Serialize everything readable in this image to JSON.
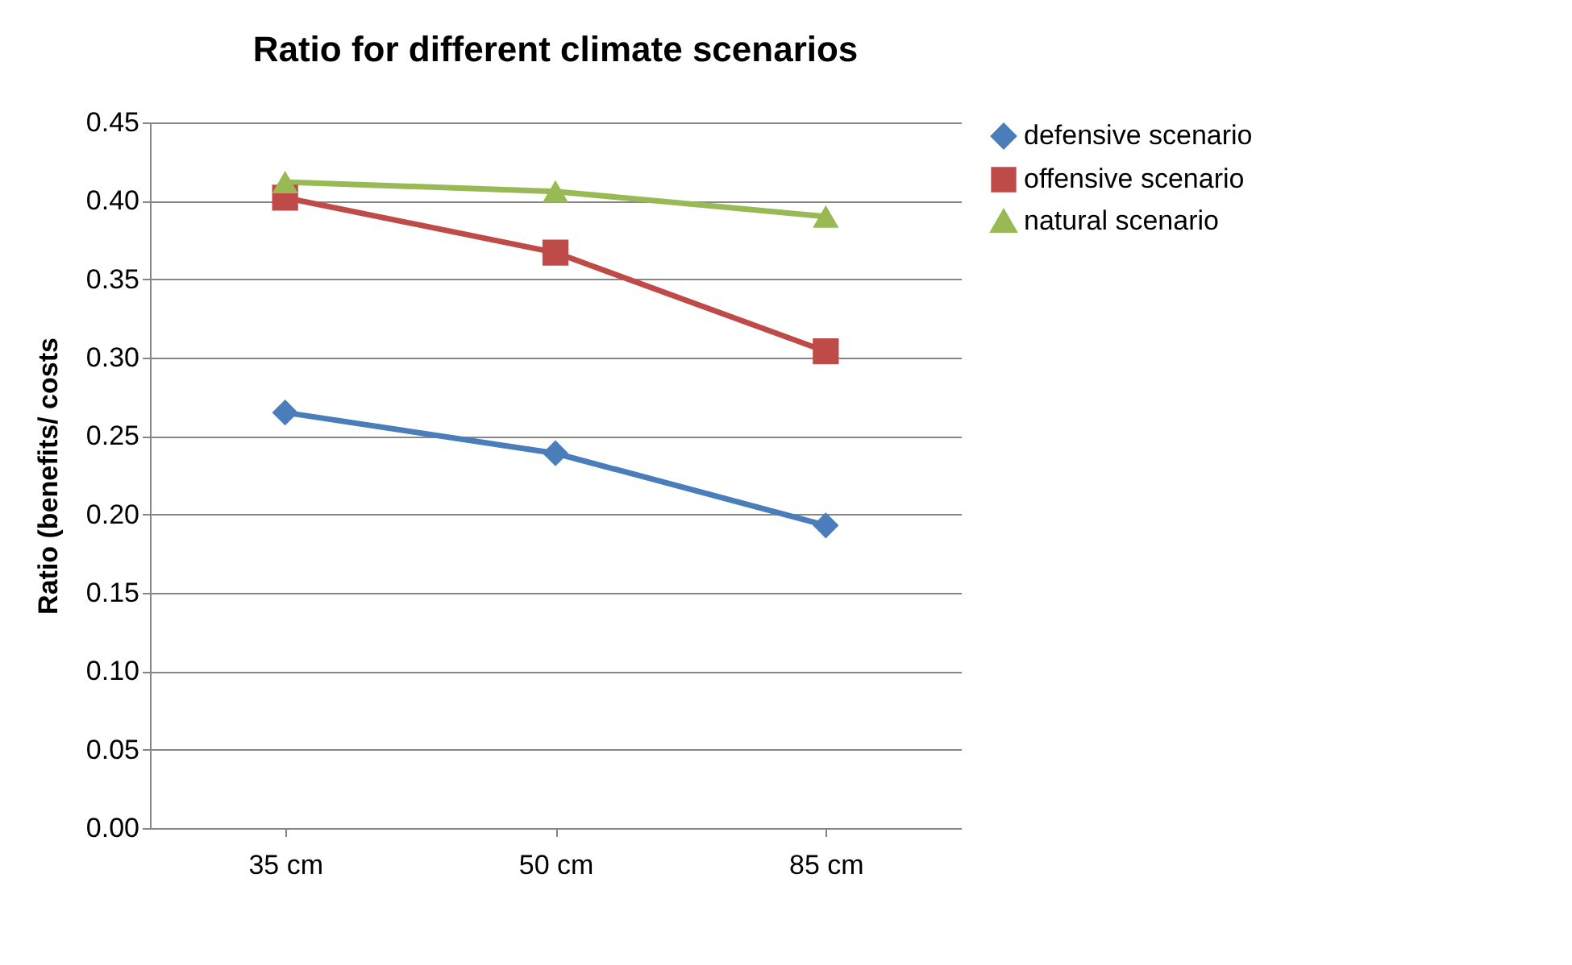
{
  "chart_data": {
    "type": "line",
    "title": "Ratio for different climate scenarios",
    "ylabel": "Ratio (benefits/ costs",
    "categories": [
      "35 cm",
      "50 cm",
      "85 cm"
    ],
    "series": [
      {
        "name": "defensive scenario",
        "color": "#4a7ebb",
        "marker": "diamond",
        "values": [
          0.265,
          0.239,
          0.193
        ]
      },
      {
        "name": "offensive scenario",
        "color": "#be4b48",
        "marker": "square",
        "values": [
          0.402,
          0.367,
          0.304
        ]
      },
      {
        "name": "natural scenario",
        "color": "#98b954",
        "marker": "triangle",
        "values": [
          0.412,
          0.406,
          0.39
        ]
      }
    ],
    "ylim": [
      0,
      0.45
    ],
    "yticks": [
      {
        "value": 0,
        "label": "0.00"
      },
      {
        "value": 0.05,
        "label": "0.05"
      },
      {
        "value": 0.1,
        "label": "0.10"
      },
      {
        "value": 0.15,
        "label": "0.15"
      },
      {
        "value": 0.2,
        "label": "0.20"
      },
      {
        "value": 0.25,
        "label": "0.25"
      },
      {
        "value": 0.3,
        "label": "0.30"
      },
      {
        "value": 0.35,
        "label": "0.35"
      },
      {
        "value": 0.4,
        "label": "0.40"
      },
      {
        "value": 0.45,
        "label": "0.45"
      }
    ],
    "grid": "y",
    "legend": "right",
    "line_style": "solid"
  }
}
